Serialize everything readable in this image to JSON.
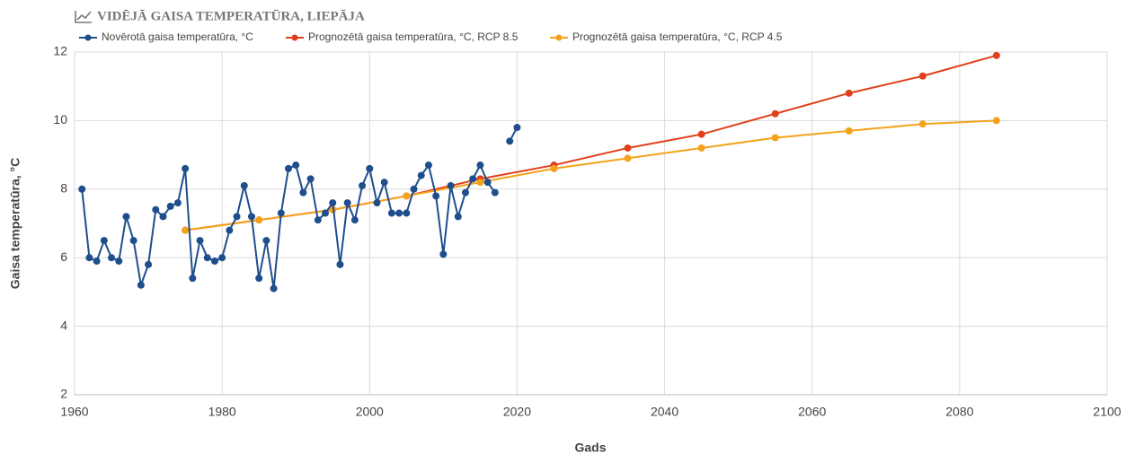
{
  "chart_data": {
    "type": "line",
    "title": "VIDĒJĀ GAISA TEMPERATŪRA, LIEPĀJA",
    "x_label": "Gads",
    "y_label": "Gaisa temperatūra, °C",
    "xlim": [
      1960,
      2100
    ],
    "xticks": [
      1960,
      1980,
      2000,
      2020,
      2040,
      2060,
      2080,
      2100
    ],
    "ylim": [
      2,
      12
    ],
    "yticks": [
      2,
      4,
      6,
      8,
      10,
      12
    ],
    "grid": true,
    "legend": "top",
    "series": [
      {
        "name": "Novērotā gaisa temperatūra, °C",
        "color": "#1f4e8c",
        "x": [
          1961,
          1962,
          1963,
          1964,
          1965,
          1966,
          1967,
          1968,
          1969,
          1970,
          1971,
          1972,
          1973,
          1974,
          1975,
          1976,
          1977,
          1978,
          1979,
          1980,
          1981,
          1982,
          1983,
          1984,
          1985,
          1986,
          1987,
          1988,
          1989,
          1990,
          1991,
          1992,
          1993,
          1994,
          1995,
          1996,
          1997,
          1998,
          1999,
          2000,
          2001,
          2002,
          2003,
          2004,
          2005,
          2006,
          2007,
          2008,
          2009,
          2010,
          2011,
          2012,
          2013,
          2014,
          2015,
          2016,
          2017,
          2018,
          2019,
          2020
        ],
        "values": [
          8.0,
          6.0,
          5.9,
          6.5,
          6.0,
          5.9,
          7.2,
          6.5,
          5.2,
          5.8,
          7.4,
          7.2,
          7.5,
          7.6,
          8.6,
          5.4,
          6.5,
          6.0,
          5.9,
          6.0,
          6.8,
          7.2,
          8.1,
          7.2,
          5.4,
          6.5,
          5.1,
          7.3,
          8.6,
          8.7,
          7.9,
          8.3,
          7.1,
          7.3,
          7.6,
          5.8,
          7.6,
          7.1,
          8.1,
          8.6,
          7.6,
          8.2,
          7.3,
          7.3,
          7.3,
          8.0,
          8.4,
          8.7,
          7.8,
          6.1,
          8.1,
          7.2,
          7.9,
          8.3,
          8.7,
          8.2,
          7.9,
          null,
          9.4,
          9.8
        ]
      },
      {
        "name": "Prognozētā gaisa temperatūra, °C, RCP 8.5",
        "color": "#e0401c",
        "x": [
          1975,
          1985,
          1995,
          2005,
          2015,
          2025,
          2035,
          2045,
          2055,
          2065,
          2075,
          2085
        ],
        "values": [
          6.8,
          7.1,
          7.4,
          7.8,
          8.3,
          8.7,
          9.2,
          9.6,
          10.2,
          10.8,
          11.3,
          11.9
        ]
      },
      {
        "name": "Prognozētā gaisa temperatūra, °C, RCP 4.5",
        "color": "#f5a21b",
        "x": [
          1975,
          1985,
          1995,
          2005,
          2015,
          2025,
          2035,
          2045,
          2055,
          2065,
          2075,
          2085
        ],
        "values": [
          6.8,
          7.1,
          7.4,
          7.8,
          8.2,
          8.6,
          8.9,
          9.2,
          9.5,
          9.7,
          9.9,
          10.0
        ]
      }
    ]
  }
}
